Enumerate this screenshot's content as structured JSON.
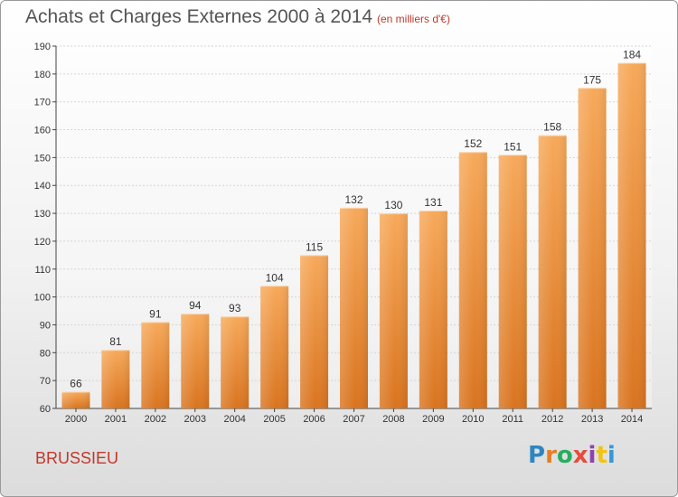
{
  "header": {
    "title": "Achats et Charges Externes 2000 à 2014",
    "subtitle": "(en milliers d'€)"
  },
  "footer": {
    "place": "BRUSSIEU",
    "logo_text": "Proxiti",
    "logo_colors": [
      "#2e86c1",
      "#e67e22",
      "#27ae60",
      "#e74c3c",
      "#8e44ad",
      "#f1c40f",
      "#3498db"
    ]
  },
  "colors": {
    "bar_top": "#f7a95a",
    "bar_bottom": "#d9741f",
    "grid": "#d5d5d5",
    "axis": "#444444",
    "text": "#333333"
  },
  "chart_data": {
    "type": "bar",
    "title": "Achats et Charges Externes 2000 à 2014",
    "subtitle": "(en milliers d'€)",
    "categories": [
      "2000",
      "2001",
      "2002",
      "2003",
      "2004",
      "2005",
      "2006",
      "2007",
      "2008",
      "2009",
      "2010",
      "2011",
      "2012",
      "2013",
      "2014"
    ],
    "values": [
      66,
      81,
      91,
      94,
      93,
      104,
      115,
      132,
      130,
      131,
      152,
      151,
      158,
      175,
      184
    ],
    "ylim": [
      60,
      190
    ],
    "yticks": [
      60,
      70,
      80,
      90,
      100,
      110,
      120,
      130,
      140,
      150,
      160,
      170,
      180,
      190
    ],
    "grid": true,
    "data_labels": true
  }
}
